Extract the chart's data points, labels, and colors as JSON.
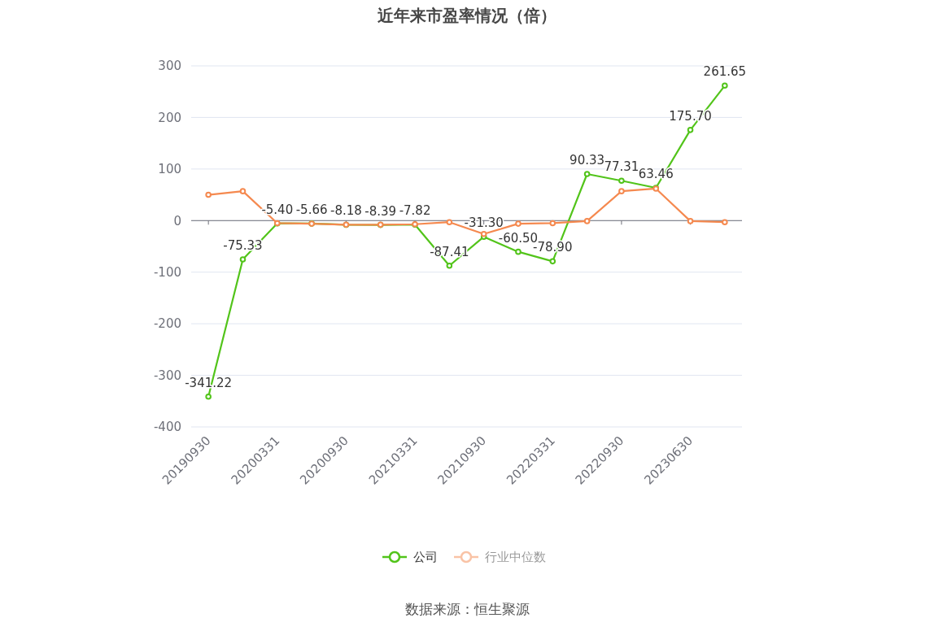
{
  "chart_data": {
    "type": "line",
    "title": "近年来市盈率情况（倍）",
    "categories": [
      "20190930",
      null,
      "20200331",
      null,
      "20200930",
      null,
      "20210331",
      null,
      "20210930",
      null,
      "20220331",
      null,
      "20220930",
      null,
      "20230630",
      null
    ],
    "series": [
      {
        "name": "公司",
        "color": "#52c41a",
        "values": [
          -341.22,
          -75.33,
          -5.4,
          -5.66,
          -8.18,
          -8.39,
          -7.82,
          -87.41,
          -31.3,
          -60.5,
          -78.9,
          90.33,
          77.31,
          63.46,
          175.7,
          261.65
        ],
        "value_labels": [
          "-341.22",
          "-75.33",
          "-5.40",
          "-5.66",
          "-8.18",
          "-8.39",
          "-7.82",
          "-87.41",
          "-31.30",
          "-60.50",
          "-78.90",
          "90.33",
          "77.31",
          "63.46",
          "175.70",
          "261.65"
        ]
      },
      {
        "name": "行业中位数",
        "color": "#f5894f",
        "values": [
          50,
          57,
          -5,
          -6,
          -8,
          -8,
          -7,
          -3,
          -26,
          -6,
          -5,
          -1,
          57,
          62,
          -1,
          -3
        ]
      }
    ],
    "ylim": [
      -400,
      300
    ],
    "yticks": [
      -400,
      -300,
      -200,
      -100,
      0,
      100,
      200,
      300
    ],
    "grid": "y",
    "legend": "bottom",
    "marker": "circle",
    "annotations": [
      "数据来源：恒生聚源"
    ]
  }
}
